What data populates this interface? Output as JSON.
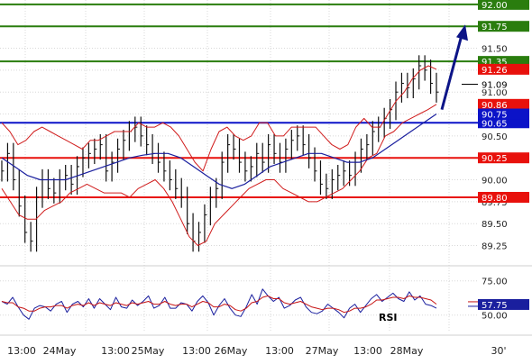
{
  "chart_data": [
    {
      "type": "line",
      "panel": "price",
      "subtype": "candlestick-bars-with-bollinger-bands-and-moving-average",
      "y_ticks": [
        89.25,
        89.5,
        89.75,
        90.0,
        90.25,
        90.5,
        90.75,
        91.0,
        91.25,
        91.5,
        91.75,
        92.0
      ],
      "y_tick_labels": [
        "89.25",
        "89.50",
        "89.75",
        "90.00",
        "",
        "90.50",
        "",
        "91.00",
        "",
        "91.50",
        "",
        ""
      ],
      "ylim": [
        89.05,
        92.05
      ],
      "x_tick_labels": [
        "13:00",
        "24May",
        "13:00",
        "25May",
        "13:00",
        "26May",
        "13:00",
        "27May",
        "13:00",
        "28May"
      ],
      "x_axis_end_label": "30'",
      "levels": [
        {
          "value": 92.0,
          "label": "92.00",
          "color": "#2a7d0e"
        },
        {
          "value": 91.75,
          "label": "91.75",
          "color": "#2a7d0e"
        },
        {
          "value": 91.35,
          "label": "91.35",
          "color": "#2a7d0e"
        },
        {
          "value": 90.65,
          "label": "90.65",
          "color": "#0b13c8"
        },
        {
          "value": 90.25,
          "label": "90.25",
          "color": "#e8110c"
        },
        {
          "value": 89.8,
          "label": "89.80",
          "color": "#e8110c"
        }
      ],
      "price_tags": [
        {
          "value": 91.26,
          "label": "91.26",
          "color": "#e8110c"
        },
        {
          "value": 91.09,
          "label": "91.09",
          "color": "#000000"
        },
        {
          "value": 90.86,
          "label": "90.86",
          "color": "#e8110c"
        },
        {
          "value": 90.75,
          "label": "90.75",
          "color": "#0b13c8"
        }
      ],
      "price_close": [
        90.1,
        90.3,
        90.0,
        89.7,
        89.4,
        89.3,
        89.8,
        90.0,
        89.9,
        89.85,
        90.0,
        90.05,
        89.95,
        90.15,
        90.25,
        90.3,
        90.35,
        90.4,
        90.1,
        90.2,
        90.35,
        90.45,
        90.55,
        90.6,
        90.5,
        90.4,
        90.3,
        90.2,
        90.1,
        90.0,
        89.9,
        89.8,
        89.5,
        89.3,
        89.4,
        89.6,
        89.8,
        89.9,
        90.2,
        90.4,
        90.35,
        90.2,
        90.1,
        90.15,
        90.3,
        90.2,
        90.4,
        90.3,
        90.2,
        90.35,
        90.45,
        90.5,
        90.4,
        90.25,
        90.1,
        89.95,
        89.9,
        90.0,
        90.05,
        90.1,
        90.05,
        90.2,
        90.35,
        90.4,
        90.55,
        90.6,
        90.7,
        90.8,
        91.0,
        91.1,
        91.05,
        91.15,
        91.3,
        91.25,
        91.1,
        91.0
      ],
      "bollinger_upper": [
        90.65,
        90.55,
        90.4,
        90.45,
        90.55,
        90.6,
        90.55,
        90.5,
        90.45,
        90.4,
        90.35,
        90.45,
        90.45,
        90.5,
        90.55,
        90.55,
        90.55,
        90.65,
        90.6,
        90.6,
        90.65,
        90.6,
        90.5,
        90.35,
        90.2,
        90.1,
        90.35,
        90.55,
        90.6,
        90.5,
        90.45,
        90.5,
        90.65,
        90.65,
        90.5,
        90.5,
        90.6,
        90.6,
        90.6,
        90.6,
        90.5,
        90.4,
        90.35,
        90.4,
        90.6,
        90.7,
        90.6,
        90.6,
        90.75,
        90.9,
        91.0,
        91.15,
        91.25,
        91.3,
        91.26
      ],
      "bollinger_lower": [
        89.9,
        89.75,
        89.6,
        89.55,
        89.55,
        89.65,
        89.7,
        89.75,
        89.85,
        89.9,
        89.95,
        89.9,
        89.85,
        89.85,
        89.85,
        89.8,
        89.9,
        89.95,
        90.0,
        89.9,
        89.75,
        89.55,
        89.35,
        89.25,
        89.3,
        89.5,
        89.6,
        89.7,
        89.8,
        89.9,
        89.95,
        90.0,
        90.0,
        89.9,
        89.85,
        89.8,
        89.75,
        89.75,
        89.8,
        89.85,
        89.9,
        90.0,
        90.1,
        90.25,
        90.3,
        90.5,
        90.55,
        90.65,
        90.7,
        90.75,
        90.8,
        90.86
      ],
      "moving_average": [
        90.25,
        90.15,
        90.05,
        90.0,
        90.0,
        90.0,
        90.05,
        90.1,
        90.15,
        90.2,
        90.25,
        90.28,
        90.3,
        90.3,
        90.25,
        90.15,
        90.05,
        89.95,
        89.9,
        89.95,
        90.05,
        90.15,
        90.2,
        90.25,
        90.3,
        90.3,
        90.25,
        90.2,
        90.2,
        90.25,
        90.35,
        90.45,
        90.55,
        90.65,
        90.75
      ],
      "projection": [
        {
          "y": 90.8
        },
        {
          "y": 91.75
        }
      ]
    },
    {
      "type": "line",
      "panel": "rsi",
      "label": "RSI",
      "y_ticks": [
        50.0,
        75.0
      ],
      "y_tick_labels": [
        "50.00",
        "75.00"
      ],
      "ylim": [
        38,
        84
      ],
      "current": {
        "value": 57.75,
        "label": "57.75"
      },
      "series": [
        {
          "color": "#1a1f9e",
          "values": [
            60,
            58,
            63,
            56,
            50,
            47,
            55,
            57,
            56,
            53,
            58,
            60,
            52,
            58,
            60,
            56,
            62,
            55,
            62,
            58,
            54,
            63,
            56,
            55,
            61,
            57,
            60,
            64,
            55,
            57,
            63,
            55,
            55,
            59,
            58,
            53,
            60,
            64,
            59,
            50,
            57,
            62,
            55,
            50,
            49,
            56,
            65,
            58,
            69,
            64,
            60,
            63,
            55,
            57,
            61,
            63,
            56,
            52,
            51,
            53,
            58,
            55,
            52,
            48,
            55,
            58,
            52,
            57,
            62,
            65,
            60,
            63,
            66,
            62,
            60,
            67,
            61,
            64,
            58,
            57,
            55
          ]
        },
        {
          "color": "#c71414",
          "values": [
            60,
            59,
            59,
            56,
            55,
            53,
            53,
            55,
            56,
            56,
            57,
            57,
            55,
            57,
            58,
            57,
            59,
            57,
            59,
            58,
            57,
            59,
            58,
            57,
            59,
            58,
            59,
            60,
            58,
            58,
            60,
            58,
            57,
            58,
            58,
            56,
            58,
            60,
            59,
            56,
            56,
            58,
            57,
            54,
            53,
            55,
            59,
            60,
            63,
            64,
            62,
            62,
            59,
            58,
            59,
            60,
            58,
            56,
            55,
            54,
            55,
            55,
            54,
            52,
            53,
            55,
            55,
            56,
            58,
            61,
            61,
            62,
            63,
            63,
            62,
            64,
            63,
            63,
            62,
            61,
            58
          ]
        }
      ]
    }
  ]
}
